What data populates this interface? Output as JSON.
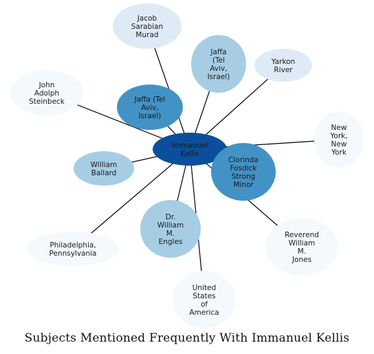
{
  "caption": "Subjects Mentioned Frequently With Immanuel Kellis",
  "center": {
    "id": "center-node",
    "label_lines": [
      "Immanuel",
      "Kellis"
    ],
    "color": "#0b4f9c"
  },
  "nodes": [
    {
      "id": "node-jacob-sarabian-murad",
      "label_lines": [
        "Jacob",
        "Sarabian",
        "Murad"
      ],
      "color": "#deebf7"
    },
    {
      "id": "node-jaffa-tel-aviv-israel-light",
      "label_lines": [
        "Jaffa",
        "(Tel",
        "Aviv,",
        "Israel)"
      ],
      "color": "#a6cde4"
    },
    {
      "id": "node-yarkon-river",
      "label_lines": [
        "Yarkon",
        "River"
      ],
      "color": "#deebf7"
    },
    {
      "id": "node-john-adolph-steinbeck",
      "label_lines": [
        "John",
        "Adolph",
        "Steinbeck"
      ],
      "color": "#f4f9fe"
    },
    {
      "id": "node-jaffa-tel-aviv-israel-dark",
      "label_lines": [
        "Jaffa (Tel",
        "Aviv,",
        "Israel)"
      ],
      "color": "#4292c6"
    },
    {
      "id": "node-new-york",
      "label_lines": [
        "New",
        "York,",
        "New",
        "York"
      ],
      "color": "#f4f9fe"
    },
    {
      "id": "node-clorinda-fosdick-strong-minor",
      "label_lines": [
        "Clorinda",
        "Fosdick",
        "Strong",
        "Minor"
      ],
      "color": "#4292c6"
    },
    {
      "id": "node-william-ballard",
      "label_lines": [
        "William",
        "Ballard"
      ],
      "color": "#a6cde4"
    },
    {
      "id": "node-dr-william-m-engles",
      "label_lines": [
        "Dr.",
        "William",
        "M.",
        "Engles"
      ],
      "color": "#a6cde4"
    },
    {
      "id": "node-philadelphia-pennsylvania",
      "label_lines": [
        "Philadelphia,",
        "Pennsylvania"
      ],
      "color": "#f4f9fe"
    },
    {
      "id": "node-reverend-william-m-jones",
      "label_lines": [
        "Reverend",
        "William",
        "M.",
        "Jones"
      ],
      "color": "#f4f9fe"
    },
    {
      "id": "node-united-states-of-america",
      "label_lines": [
        "United",
        "States",
        "of",
        "America"
      ],
      "color": "#f4f9fe"
    }
  ]
}
